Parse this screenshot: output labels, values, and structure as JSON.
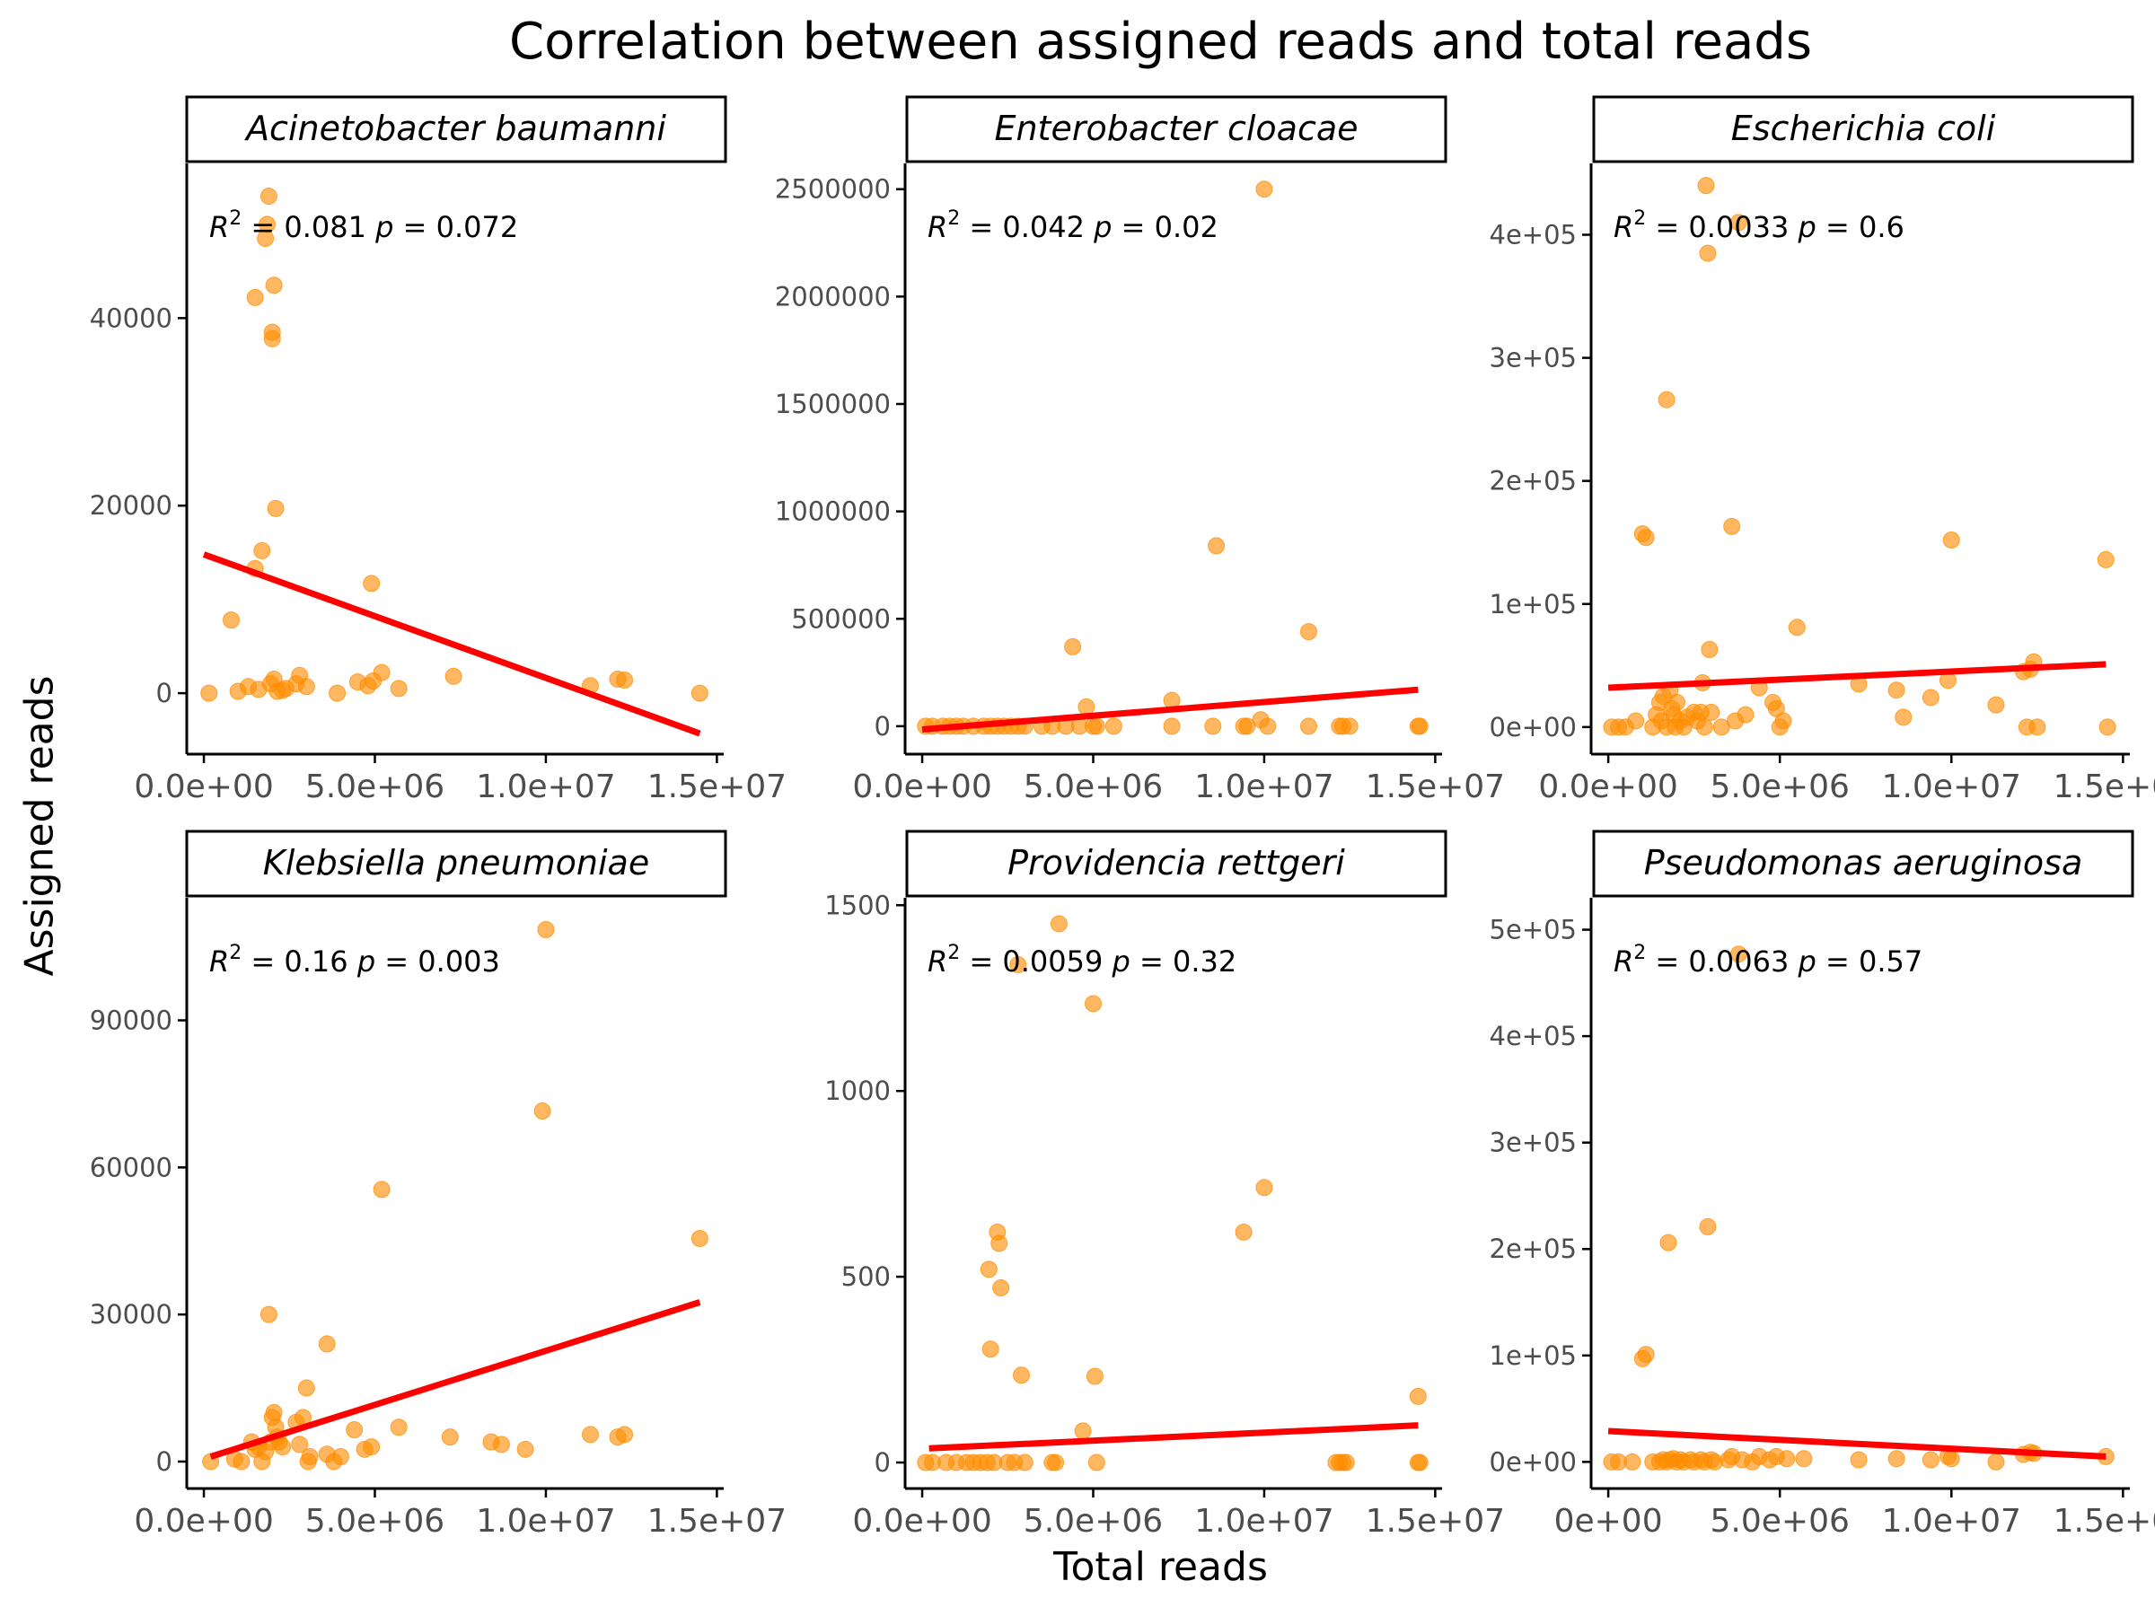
{
  "title": "Correlation between assigned reads and total reads",
  "xlabel": "Total reads",
  "ylabel": "Assigned reads",
  "colors": {
    "point": "#ff8c00",
    "line": "#ff0000",
    "axis": "#000000",
    "tick_text": "#4d4d4d"
  },
  "chart_data": [
    {
      "type": "scatter",
      "panel": "Acinetobacter baumanni",
      "stat_r2": "0.081",
      "stat_p": "0.072",
      "xlim": [
        -500000,
        15200000
      ],
      "ylim": [
        -6500,
        56500
      ],
      "x_ticks": [
        0,
        5000000,
        10000000,
        15000000
      ],
      "x_tick_labels": [
        "0.0e+00",
        "5.0e+06",
        "1.0e+07",
        "1.5e+07"
      ],
      "y_ticks": [
        0,
        20000,
        40000
      ],
      "y_tick_labels": [
        "0",
        "20000",
        "40000"
      ],
      "regression": {
        "x": [
          0,
          14500000
        ],
        "y": [
          14800,
          -4300
        ]
      },
      "points": [
        [
          150000,
          0
        ],
        [
          800000,
          7800
        ],
        [
          1000000,
          200
        ],
        [
          1300000,
          700
        ],
        [
          1500000,
          42200
        ],
        [
          1500000,
          13300
        ],
        [
          1600000,
          400
        ],
        [
          1700000,
          15200
        ],
        [
          1800000,
          48500
        ],
        [
          1850000,
          50000
        ],
        [
          1900000,
          53000
        ],
        [
          1950000,
          1000
        ],
        [
          2000000,
          37800
        ],
        [
          2000000,
          38500
        ],
        [
          2050000,
          43500
        ],
        [
          2050000,
          1500
        ],
        [
          2100000,
          19700
        ],
        [
          2150000,
          200
        ],
        [
          2300000,
          300
        ],
        [
          2400000,
          500
        ],
        [
          2700000,
          1000
        ],
        [
          2800000,
          1900
        ],
        [
          3000000,
          700
        ],
        [
          3900000,
          0
        ],
        [
          4500000,
          1200
        ],
        [
          4800000,
          800
        ],
        [
          4900000,
          11700
        ],
        [
          4950000,
          1300
        ],
        [
          5200000,
          2200
        ],
        [
          5700000,
          500
        ],
        [
          7300000,
          1800
        ],
        [
          11300000,
          800
        ],
        [
          12100000,
          1500
        ],
        [
          12300000,
          1400
        ],
        [
          14500000,
          0
        ]
      ]
    },
    {
      "type": "scatter",
      "panel": "Enterobacter cloacae",
      "stat_r2": "0.042",
      "stat_p": "0.02",
      "xlim": [
        -500000,
        15200000
      ],
      "ylim": [
        -130000,
        2620000
      ],
      "x_ticks": [
        0,
        5000000,
        10000000,
        15000000
      ],
      "x_tick_labels": [
        "0.0e+00",
        "5.0e+06",
        "1.0e+07",
        "1.5e+07"
      ],
      "y_ticks": [
        0,
        500000,
        1000000,
        1500000,
        2000000,
        2500000
      ],
      "y_tick_labels": [
        "0",
        "500000",
        "1000000",
        "1500000",
        "2000000",
        "2500000"
      ],
      "regression": {
        "x": [
          0,
          14500000
        ],
        "y": [
          -15000,
          170000
        ]
      },
      "points": [
        [
          100000,
          0
        ],
        [
          300000,
          0
        ],
        [
          600000,
          0
        ],
        [
          800000,
          0
        ],
        [
          1000000,
          0
        ],
        [
          1200000,
          0
        ],
        [
          1500000,
          0
        ],
        [
          1800000,
          0
        ],
        [
          2000000,
          0
        ],
        [
          2200000,
          0
        ],
        [
          2400000,
          0
        ],
        [
          2600000,
          0
        ],
        [
          2800000,
          0
        ],
        [
          3000000,
          0
        ],
        [
          3500000,
          0
        ],
        [
          3800000,
          0
        ],
        [
          4200000,
          0
        ],
        [
          4400000,
          370000
        ],
        [
          4600000,
          0
        ],
        [
          4800000,
          90000
        ],
        [
          5000000,
          0
        ],
        [
          5100000,
          0
        ],
        [
          5600000,
          0
        ],
        [
          7300000,
          120000
        ],
        [
          7300000,
          0
        ],
        [
          8500000,
          0
        ],
        [
          8600000,
          840000
        ],
        [
          9400000,
          0
        ],
        [
          9500000,
          0
        ],
        [
          9900000,
          30000
        ],
        [
          10000000,
          2500000
        ],
        [
          10100000,
          0
        ],
        [
          11300000,
          440000
        ],
        [
          11300000,
          0
        ],
        [
          12200000,
          0
        ],
        [
          12300000,
          0
        ],
        [
          12500000,
          0
        ],
        [
          14500000,
          0
        ],
        [
          14550000,
          0
        ]
      ]
    },
    {
      "type": "scatter",
      "panel": "Escherichia coli",
      "stat_r2": "0.0033",
      "stat_p": "0.6",
      "xlim": [
        -500000,
        15200000
      ],
      "ylim": [
        -22000,
        458000
      ],
      "x_ticks": [
        0,
        5000000,
        10000000,
        15000000
      ],
      "x_tick_labels": [
        "0.0e+00",
        "5.0e+06",
        "1.0e+07",
        "1.5e+07"
      ],
      "y_ticks": [
        0,
        100000,
        200000,
        300000,
        400000
      ],
      "y_tick_labels": [
        "0e+00",
        "1e+05",
        "2e+05",
        "3e+05",
        "4e+05"
      ],
      "regression": {
        "x": [
          0,
          14500000
        ],
        "y": [
          32000,
          51000
        ]
      },
      "points": [
        [
          100000,
          0
        ],
        [
          300000,
          0
        ],
        [
          500000,
          0
        ],
        [
          800000,
          5000
        ],
        [
          1000000,
          157000
        ],
        [
          1100000,
          154000
        ],
        [
          1300000,
          0
        ],
        [
          1400000,
          10000
        ],
        [
          1500000,
          20000
        ],
        [
          1550000,
          5000
        ],
        [
          1600000,
          25000
        ],
        [
          1700000,
          266000
        ],
        [
          1700000,
          0
        ],
        [
          1800000,
          30000
        ],
        [
          1850000,
          15000
        ],
        [
          1900000,
          10000
        ],
        [
          1950000,
          0
        ],
        [
          2000000,
          20000
        ],
        [
          2100000,
          5000
        ],
        [
          2200000,
          0
        ],
        [
          2300000,
          8000
        ],
        [
          2500000,
          12000
        ],
        [
          2600000,
          5000
        ],
        [
          2700000,
          12000
        ],
        [
          2750000,
          36000
        ],
        [
          2800000,
          0
        ],
        [
          2850000,
          440000
        ],
        [
          2900000,
          385000
        ],
        [
          2950000,
          63000
        ],
        [
          3000000,
          12000
        ],
        [
          3300000,
          0
        ],
        [
          3600000,
          163000
        ],
        [
          3700000,
          5000
        ],
        [
          3800000,
          410000
        ],
        [
          4000000,
          10000
        ],
        [
          4400000,
          32000
        ],
        [
          4800000,
          20000
        ],
        [
          4900000,
          15000
        ],
        [
          5000000,
          0
        ],
        [
          5100000,
          5000
        ],
        [
          5500000,
          81000
        ],
        [
          7300000,
          35000
        ],
        [
          8400000,
          30000
        ],
        [
          8600000,
          8000
        ],
        [
          9400000,
          24000
        ],
        [
          9900000,
          38000
        ],
        [
          10000000,
          152000
        ],
        [
          11300000,
          18000
        ],
        [
          12100000,
          45000
        ],
        [
          12200000,
          0
        ],
        [
          12300000,
          47000
        ],
        [
          12400000,
          53000
        ],
        [
          12500000,
          0
        ],
        [
          14500000,
          136000
        ],
        [
          14550000,
          0
        ]
      ]
    },
    {
      "type": "scatter",
      "panel": "Klebsiella pneumoniae",
      "stat_r2": "0.16",
      "stat_p": "0.003",
      "xlim": [
        -500000,
        15200000
      ],
      "ylim": [
        -5500,
        115000
      ],
      "x_ticks": [
        0,
        5000000,
        10000000,
        15000000
      ],
      "x_tick_labels": [
        "0.0e+00",
        "5.0e+06",
        "1.0e+07",
        "1.5e+07"
      ],
      "y_ticks": [
        0,
        30000,
        60000,
        90000
      ],
      "y_tick_labels": [
        "0",
        "30000",
        "60000",
        "90000"
      ],
      "regression": {
        "x": [
          200000,
          14500000
        ],
        "y": [
          1000,
          32500
        ]
      },
      "points": [
        [
          200000,
          0
        ],
        [
          900000,
          500
        ],
        [
          1100000,
          0
        ],
        [
          1400000,
          4000
        ],
        [
          1500000,
          2500
        ],
        [
          1600000,
          3000
        ],
        [
          1700000,
          0
        ],
        [
          1800000,
          2000
        ],
        [
          1900000,
          30000
        ],
        [
          1950000,
          4000
        ],
        [
          2000000,
          9000
        ],
        [
          2050000,
          10000
        ],
        [
          2100000,
          7000
        ],
        [
          2150000,
          5000
        ],
        [
          2200000,
          4000
        ],
        [
          2300000,
          3000
        ],
        [
          2700000,
          8000
        ],
        [
          2800000,
          3500
        ],
        [
          2900000,
          9000
        ],
        [
          3000000,
          15000
        ],
        [
          3050000,
          0
        ],
        [
          3100000,
          1000
        ],
        [
          3600000,
          1500
        ],
        [
          3600000,
          24000
        ],
        [
          3800000,
          0
        ],
        [
          4000000,
          1000
        ],
        [
          4400000,
          6500
        ],
        [
          4700000,
          2500
        ],
        [
          4900000,
          3000
        ],
        [
          5200000,
          55500
        ],
        [
          5700000,
          7000
        ],
        [
          7200000,
          5000
        ],
        [
          8400000,
          4000
        ],
        [
          8700000,
          3500
        ],
        [
          9400000,
          2500
        ],
        [
          9900000,
          71500
        ],
        [
          10000000,
          108500
        ],
        [
          11300000,
          5500
        ],
        [
          12100000,
          5000
        ],
        [
          12300000,
          5500
        ],
        [
          14500000,
          45500
        ]
      ]
    },
    {
      "type": "scatter",
      "panel": "Providencia rettgeri",
      "stat_r2": "0.0059",
      "stat_p": "0.32",
      "xlim": [
        -500000,
        15200000
      ],
      "ylim": [
        -70,
        1520
      ],
      "x_ticks": [
        0,
        5000000,
        10000000,
        15000000
      ],
      "x_tick_labels": [
        "0.0e+00",
        "5.0e+06",
        "1.0e+07",
        "1.5e+07"
      ],
      "y_ticks": [
        0,
        500,
        1000,
        1500
      ],
      "y_tick_labels": [
        "0",
        "500",
        "1000",
        "1500"
      ],
      "regression": {
        "x": [
          200000,
          14500000
        ],
        "y": [
          38,
          100
        ]
      },
      "points": [
        [
          100000,
          0
        ],
        [
          300000,
          0
        ],
        [
          700000,
          0
        ],
        [
          1000000,
          0
        ],
        [
          1300000,
          0
        ],
        [
          1500000,
          0
        ],
        [
          1700000,
          0
        ],
        [
          1900000,
          0
        ],
        [
          1950000,
          520
        ],
        [
          2000000,
          305
        ],
        [
          2100000,
          0
        ],
        [
          2200000,
          620
        ],
        [
          2250000,
          590
        ],
        [
          2300000,
          470
        ],
        [
          2500000,
          0
        ],
        [
          2700000,
          0
        ],
        [
          2800000,
          1340
        ],
        [
          2900000,
          235
        ],
        [
          3000000,
          0
        ],
        [
          3800000,
          0
        ],
        [
          3900000,
          0
        ],
        [
          4000000,
          1450
        ],
        [
          4700000,
          85
        ],
        [
          5000000,
          1235
        ],
        [
          5050000,
          232
        ],
        [
          5100000,
          0
        ],
        [
          9400000,
          620
        ],
        [
          10000000,
          740
        ],
        [
          12100000,
          0
        ],
        [
          12200000,
          0
        ],
        [
          12300000,
          0
        ],
        [
          12400000,
          0
        ],
        [
          14500000,
          0
        ],
        [
          14500000,
          178
        ],
        [
          14550000,
          0
        ]
      ]
    },
    {
      "type": "scatter",
      "panel": "Pseudomonas aeruginosa",
      "stat_r2": "0.0063",
      "stat_p": "0.57",
      "xlim": [
        -500000,
        15200000
      ],
      "ylim": [
        -25000,
        530000
      ],
      "x_ticks": [
        0,
        5000000,
        10000000,
        15000000
      ],
      "x_tick_labels": [
        "0e+00",
        "5.0e+06",
        "1.0e+07",
        "1.5e+07"
      ],
      "y_ticks": [
        0,
        100000,
        200000,
        300000,
        400000,
        500000
      ],
      "y_tick_labels": [
        "0e+00",
        "1e+05",
        "2e+05",
        "3e+05",
        "4e+05",
        "5e+05"
      ],
      "regression": {
        "x": [
          0,
          14500000
        ],
        "y": [
          29000,
          5000
        ]
      },
      "points": [
        [
          100000,
          0
        ],
        [
          300000,
          0
        ],
        [
          700000,
          0
        ],
        [
          1000000,
          97000
        ],
        [
          1100000,
          101000
        ],
        [
          1300000,
          0
        ],
        [
          1500000,
          0
        ],
        [
          1600000,
          2000
        ],
        [
          1700000,
          0
        ],
        [
          1750000,
          206000
        ],
        [
          1800000,
          2000
        ],
        [
          1900000,
          3000
        ],
        [
          2000000,
          0
        ],
        [
          2100000,
          2000
        ],
        [
          2200000,
          0
        ],
        [
          2400000,
          2000
        ],
        [
          2500000,
          0
        ],
        [
          2700000,
          2000
        ],
        [
          2800000,
          0
        ],
        [
          2900000,
          221000
        ],
        [
          3000000,
          2000
        ],
        [
          3100000,
          0
        ],
        [
          3500000,
          2000
        ],
        [
          3600000,
          5000
        ],
        [
          3800000,
          477000
        ],
        [
          3900000,
          2000
        ],
        [
          4200000,
          0
        ],
        [
          4400000,
          5000
        ],
        [
          4700000,
          2000
        ],
        [
          4900000,
          5000
        ],
        [
          5200000,
          3000
        ],
        [
          5700000,
          3000
        ],
        [
          7300000,
          2000
        ],
        [
          8400000,
          3000
        ],
        [
          9400000,
          2000
        ],
        [
          9900000,
          5000
        ],
        [
          10000000,
          3000
        ],
        [
          11300000,
          0
        ],
        [
          12100000,
          7000
        ],
        [
          12300000,
          9000
        ],
        [
          12400000,
          8000
        ],
        [
          14500000,
          5000
        ]
      ]
    }
  ]
}
